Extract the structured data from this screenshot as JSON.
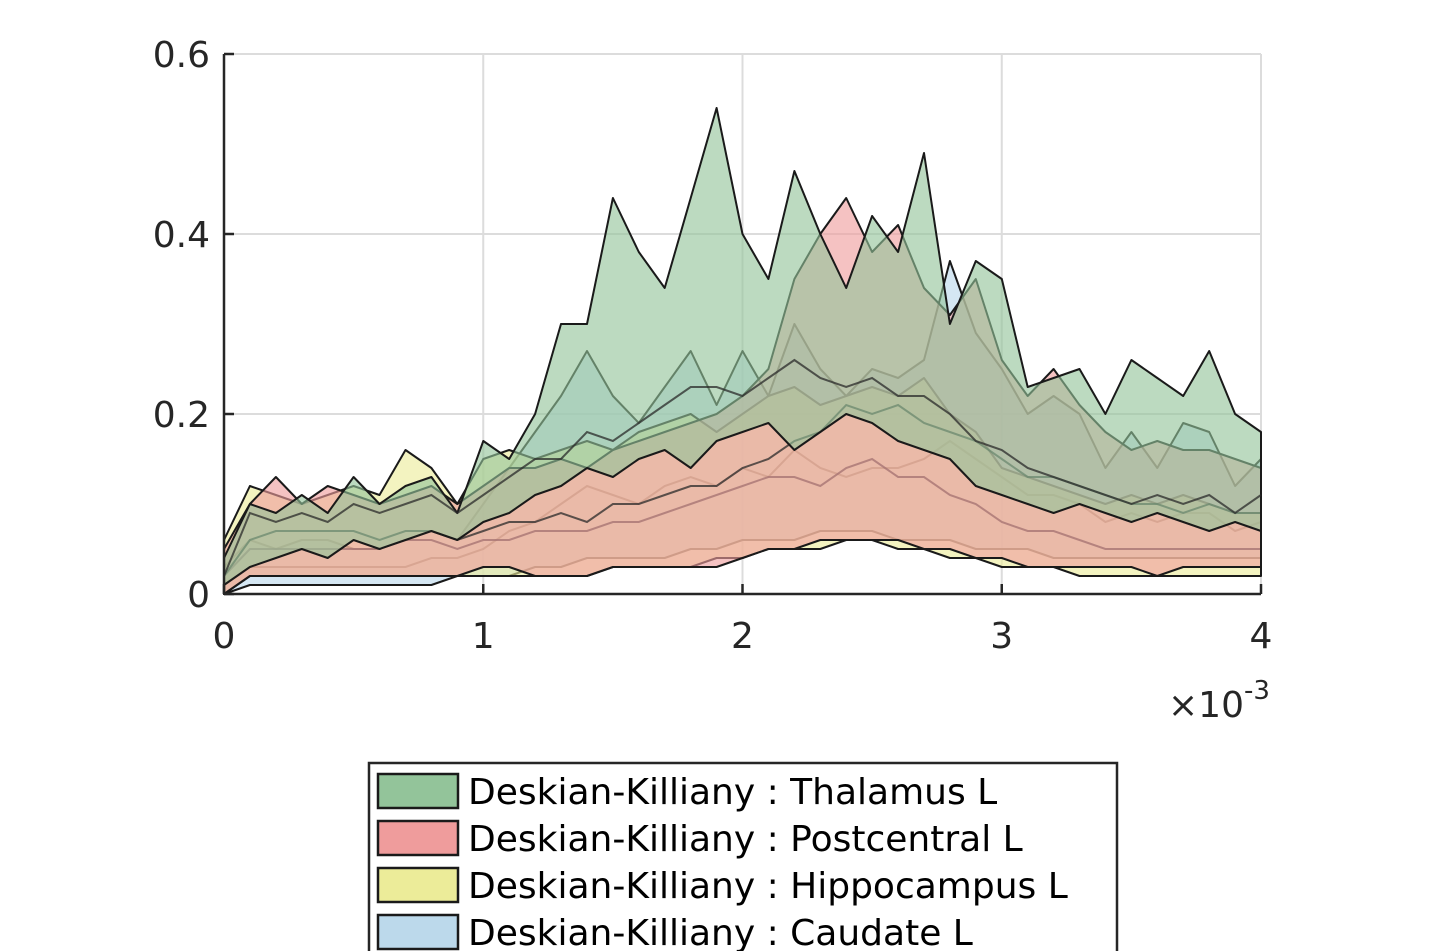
{
  "chart_data": {
    "type": "area",
    "title": "",
    "xlabel": "",
    "ylabel": "",
    "xlim": [
      0,
      0.004
    ],
    "ylim": [
      0,
      0.6
    ],
    "x_exponent_label": "×10",
    "x_exponent_power": "-3",
    "x_ticks": [
      0,
      1,
      2,
      3,
      4
    ],
    "x_tick_labels": [
      "0",
      "1",
      "2",
      "3",
      "4"
    ],
    "y_ticks": [
      0,
      0.2,
      0.4,
      0.6
    ],
    "y_tick_labels": [
      "0",
      "0.2",
      "0.4",
      "0.6"
    ],
    "grid": true,
    "legend_position": "bottom-center",
    "x_scaled": [
      0,
      0.1,
      0.2,
      0.3,
      0.4,
      0.5,
      0.6,
      0.7,
      0.8,
      0.9,
      1.0,
      1.1,
      1.2,
      1.3,
      1.4,
      1.5,
      1.6,
      1.7,
      1.8,
      1.9,
      2.0,
      2.1,
      2.2,
      2.3,
      2.4,
      2.5,
      2.6,
      2.7,
      2.8,
      2.9,
      3.0,
      3.1,
      3.2,
      3.3,
      3.4,
      3.5,
      3.6,
      3.7,
      3.8,
      3.9,
      4.0
    ],
    "series": [
      {
        "name": "Deskian-Killiany : Thalamus L",
        "color": "#93c49a",
        "upper": [
          0.04,
          0.1,
          0.09,
          0.11,
          0.09,
          0.13,
          0.1,
          0.12,
          0.13,
          0.09,
          0.17,
          0.15,
          0.2,
          0.3,
          0.3,
          0.44,
          0.38,
          0.34,
          0.44,
          0.54,
          0.4,
          0.35,
          0.47,
          0.4,
          0.34,
          0.42,
          0.38,
          0.49,
          0.3,
          0.37,
          0.35,
          0.23,
          0.24,
          0.25,
          0.2,
          0.26,
          0.24,
          0.22,
          0.27,
          0.2,
          0.18
        ],
        "lower": [
          0.01,
          0.03,
          0.04,
          0.05,
          0.04,
          0.06,
          0.05,
          0.06,
          0.07,
          0.06,
          0.08,
          0.09,
          0.11,
          0.12,
          0.14,
          0.13,
          0.15,
          0.16,
          0.14,
          0.17,
          0.18,
          0.19,
          0.16,
          0.18,
          0.2,
          0.19,
          0.17,
          0.16,
          0.15,
          0.12,
          0.11,
          0.1,
          0.09,
          0.1,
          0.09,
          0.08,
          0.09,
          0.08,
          0.07,
          0.08,
          0.07
        ],
        "mean": [
          0.02,
          0.09,
          0.08,
          0.09,
          0.08,
          0.1,
          0.09,
          0.1,
          0.11,
          0.09,
          0.11,
          0.13,
          0.15,
          0.15,
          0.18,
          0.17,
          0.19,
          0.21,
          0.23,
          0.23,
          0.22,
          0.24,
          0.26,
          0.24,
          0.23,
          0.24,
          0.22,
          0.22,
          0.2,
          0.17,
          0.16,
          0.14,
          0.13,
          0.12,
          0.11,
          0.1,
          0.11,
          0.1,
          0.11,
          0.09,
          0.11
        ]
      },
      {
        "name": "Deskian-Killiany : Postcentral L",
        "color": "#ef9c9c",
        "upper": [
          0.05,
          0.1,
          0.13,
          0.1,
          0.12,
          0.11,
          0.1,
          0.11,
          0.12,
          0.1,
          0.12,
          0.14,
          0.14,
          0.15,
          0.14,
          0.16,
          0.17,
          0.18,
          0.19,
          0.2,
          0.22,
          0.25,
          0.35,
          0.4,
          0.44,
          0.38,
          0.41,
          0.34,
          0.31,
          0.35,
          0.26,
          0.22,
          0.25,
          0.21,
          0.18,
          0.16,
          0.17,
          0.16,
          0.16,
          0.15,
          0.14
        ],
        "lower": [
          0.0,
          0.02,
          0.02,
          0.02,
          0.02,
          0.02,
          0.02,
          0.02,
          0.02,
          0.02,
          0.03,
          0.03,
          0.02,
          0.02,
          0.02,
          0.03,
          0.03,
          0.03,
          0.03,
          0.03,
          0.04,
          0.05,
          0.05,
          0.06,
          0.06,
          0.06,
          0.06,
          0.05,
          0.05,
          0.04,
          0.04,
          0.03,
          0.03,
          0.03,
          0.03,
          0.03,
          0.02,
          0.03,
          0.03,
          0.03,
          0.03
        ],
        "mean": [
          0.02,
          0.06,
          0.07,
          0.07,
          0.07,
          0.07,
          0.06,
          0.07,
          0.07,
          0.06,
          0.07,
          0.08,
          0.08,
          0.09,
          0.08,
          0.1,
          0.1,
          0.11,
          0.12,
          0.12,
          0.14,
          0.15,
          0.17,
          0.18,
          0.21,
          0.2,
          0.21,
          0.19,
          0.18,
          0.17,
          0.15,
          0.13,
          0.13,
          0.12,
          0.11,
          0.1,
          0.1,
          0.09,
          0.1,
          0.09,
          0.09
        ]
      },
      {
        "name": "Deskian-Killiany : Hippocampus L",
        "color": "#ecec99",
        "upper": [
          0.06,
          0.12,
          0.11,
          0.1,
          0.11,
          0.12,
          0.11,
          0.16,
          0.14,
          0.1,
          0.15,
          0.16,
          0.15,
          0.16,
          0.17,
          0.16,
          0.18,
          0.19,
          0.2,
          0.18,
          0.2,
          0.22,
          0.23,
          0.21,
          0.22,
          0.23,
          0.22,
          0.24,
          0.2,
          0.18,
          0.14,
          0.13,
          0.12,
          0.11,
          0.1,
          0.11,
          0.1,
          0.11,
          0.1,
          0.09,
          0.09
        ],
        "lower": [
          0.0,
          0.02,
          0.02,
          0.02,
          0.02,
          0.02,
          0.02,
          0.02,
          0.02,
          0.02,
          0.02,
          0.02,
          0.02,
          0.02,
          0.02,
          0.03,
          0.03,
          0.03,
          0.03,
          0.04,
          0.04,
          0.05,
          0.05,
          0.05,
          0.06,
          0.06,
          0.05,
          0.05,
          0.04,
          0.04,
          0.03,
          0.03,
          0.03,
          0.02,
          0.02,
          0.02,
          0.02,
          0.02,
          0.02,
          0.02,
          0.02
        ],
        "mean": [
          0.02,
          0.05,
          0.05,
          0.05,
          0.05,
          0.05,
          0.05,
          0.06,
          0.06,
          0.05,
          0.06,
          0.06,
          0.07,
          0.07,
          0.07,
          0.08,
          0.08,
          0.09,
          0.1,
          0.11,
          0.12,
          0.13,
          0.13,
          0.12,
          0.14,
          0.15,
          0.13,
          0.13,
          0.11,
          0.1,
          0.08,
          0.07,
          0.07,
          0.06,
          0.05,
          0.05,
          0.05,
          0.05,
          0.05,
          0.05,
          0.05
        ]
      },
      {
        "name": "Deskian-Killiany : Caudate L",
        "color": "#bcd9eb",
        "upper": [
          0.03,
          0.06,
          0.05,
          0.06,
          0.06,
          0.05,
          0.05,
          0.06,
          0.07,
          0.06,
          0.1,
          0.14,
          0.18,
          0.22,
          0.27,
          0.22,
          0.19,
          0.23,
          0.27,
          0.21,
          0.27,
          0.22,
          0.3,
          0.25,
          0.22,
          0.25,
          0.24,
          0.26,
          0.37,
          0.29,
          0.25,
          0.2,
          0.22,
          0.2,
          0.14,
          0.18,
          0.14,
          0.19,
          0.18,
          0.12,
          0.15
        ],
        "lower": [
          0.0,
          0.01,
          0.01,
          0.01,
          0.01,
          0.01,
          0.01,
          0.01,
          0.01,
          0.02,
          0.02,
          0.02,
          0.03,
          0.03,
          0.04,
          0.04,
          0.04,
          0.04,
          0.05,
          0.05,
          0.06,
          0.06,
          0.06,
          0.07,
          0.07,
          0.07,
          0.06,
          0.06,
          0.06,
          0.05,
          0.05,
          0.05,
          0.04,
          0.04,
          0.04,
          0.04,
          0.04,
          0.04,
          0.04,
          0.04,
          0.04
        ],
        "mean": [
          0.01,
          0.03,
          0.03,
          0.03,
          0.03,
          0.03,
          0.03,
          0.03,
          0.04,
          0.04,
          0.05,
          0.07,
          0.08,
          0.1,
          0.12,
          0.11,
          0.1,
          0.12,
          0.13,
          0.12,
          0.14,
          0.13,
          0.16,
          0.14,
          0.13,
          0.14,
          0.14,
          0.15,
          0.17,
          0.15,
          0.13,
          0.11,
          0.11,
          0.1,
          0.08,
          0.09,
          0.08,
          0.09,
          0.09,
          0.07,
          0.08
        ]
      }
    ],
    "legend": [
      "Deskian-Killiany : Thalamus L",
      "Deskian-Killiany : Postcentral L",
      "Deskian-Killiany : Hippocampus L",
      "Deskian-Killiany : Caudate L"
    ]
  }
}
